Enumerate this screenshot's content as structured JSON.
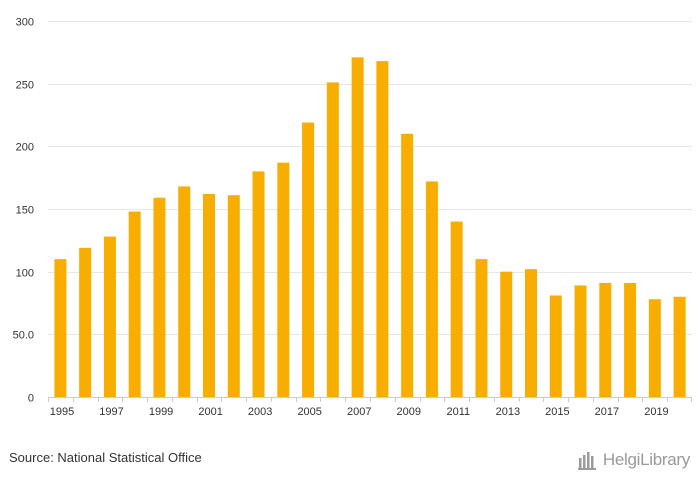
{
  "chart_data": {
    "type": "bar",
    "title": "",
    "xlabel": "",
    "ylabel": "",
    "ylim": [
      0,
      300
    ],
    "y_ticks": [
      {
        "value": 0,
        "label": "0"
      },
      {
        "value": 50,
        "label": "50.0"
      },
      {
        "value": 100,
        "label": "100"
      },
      {
        "value": 150,
        "label": "150"
      },
      {
        "value": 200,
        "label": "200"
      },
      {
        "value": 250,
        "label": "250"
      },
      {
        "value": 300,
        "label": "300"
      }
    ],
    "grid": true,
    "legend": "none",
    "bar_color": "#F7AE00",
    "categories": [
      "1995",
      "1996",
      "1997",
      "1998",
      "1999",
      "2000",
      "2001",
      "2002",
      "2003",
      "2004",
      "2005",
      "2006",
      "2007",
      "2008",
      "2009",
      "2010",
      "2011",
      "2012",
      "2013",
      "2014",
      "2015",
      "2016",
      "2017",
      "2018",
      "2019",
      "2020"
    ],
    "x_tick_labels": [
      "1995",
      "1997",
      "1999",
      "2001",
      "2003",
      "2005",
      "2007",
      "2009",
      "2011",
      "2013",
      "2015",
      "2017",
      "2019"
    ],
    "values": [
      110,
      119,
      128,
      148,
      159,
      168,
      162,
      161,
      180,
      187,
      219,
      251,
      271,
      268,
      210,
      172,
      140,
      110,
      100,
      102,
      81,
      89,
      91,
      91,
      78,
      80
    ]
  },
  "footer": {
    "source": "Source: National Statistical Office",
    "brand": "HelgiLibrary"
  },
  "colors": {
    "grid": "#E6E6E6",
    "axis": "#CCCCCC",
    "brand": "#9A9A9A"
  }
}
